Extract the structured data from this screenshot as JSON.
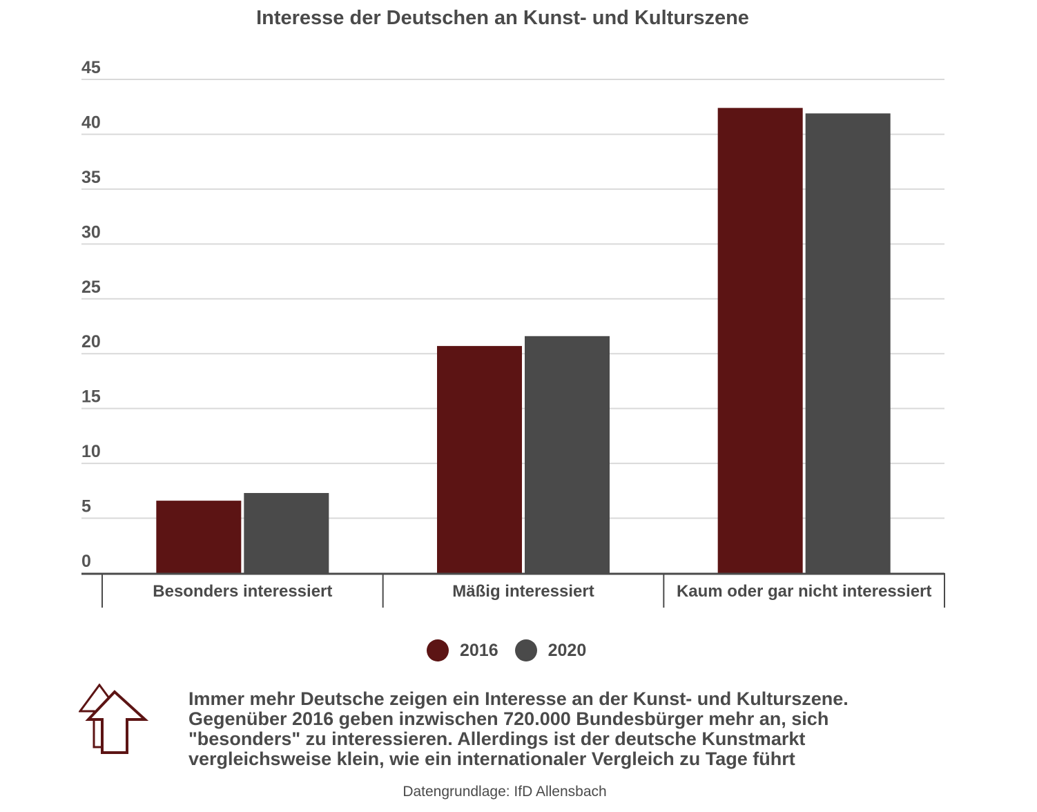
{
  "colors": {
    "series_2016": "#5c1414",
    "series_2020": "#4a4a4a",
    "grid": "#d9d9d9",
    "axis": "#4a4a4a"
  },
  "chart_data": {
    "type": "bar",
    "title": "Interesse der Deutschen an Kunst- und Kulturszene",
    "categories": [
      "Besonders interessiert",
      "Mäßig interessiert",
      "Kaum oder gar nicht interessiert"
    ],
    "series": [
      {
        "name": "2016",
        "values": [
          6.6,
          20.7,
          42.4
        ]
      },
      {
        "name": "2020",
        "values": [
          7.3,
          21.6,
          41.9
        ]
      }
    ],
    "ylim": [
      0,
      45
    ],
    "yticks": [
      0,
      5,
      10,
      15,
      20,
      25,
      30,
      35,
      40,
      45
    ],
    "grid": true,
    "legend": "bottom-center"
  },
  "note": {
    "icon": "arrow-up-icon",
    "text": "Immer mehr Deutsche zeigen ein Interesse an der Kunst- und Kulturszene. Gegenüber 2016 geben inzwischen 720.000 Bundesbürger mehr an, sich \"besonders\" zu interessieren. Allerdings ist der deutsche Kunstmarkt vergleichsweise klein, wie ein internationaler Vergleich zu Tage führt"
  },
  "source": "Datengrundlage: IfD Allensbach"
}
